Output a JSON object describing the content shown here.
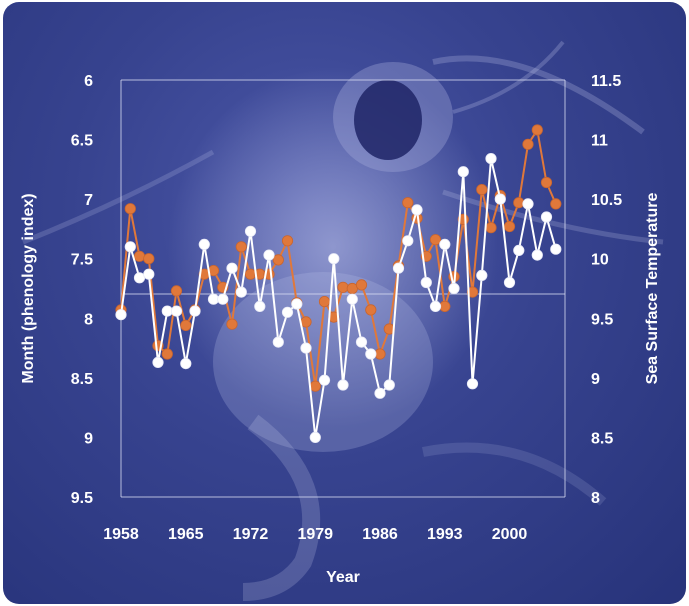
{
  "chart_data": {
    "type": "line",
    "title": "",
    "xlabel": "Year",
    "ylabel": "Month (phenology index)",
    "y2label": "Sea Surface Temperature",
    "xlim": [
      1958,
      2006
    ],
    "ylim": [
      6,
      9.5
    ],
    "ylim_reversed": true,
    "y2lim": [
      8,
      11.5
    ],
    "x_ticks": [
      "1958",
      "1965",
      "1972",
      "1979",
      "1986",
      "1993",
      "2000"
    ],
    "x_tick_values": [
      1958,
      1965,
      1972,
      1979,
      1986,
      1993,
      2000
    ],
    "y_ticks": [
      "6",
      "6.5",
      "7",
      "7.5",
      "8",
      "8.5",
      "9",
      "9.5"
    ],
    "y_tick_values": [
      6,
      6.5,
      7,
      7.5,
      8,
      8.5,
      9,
      9.5
    ],
    "y2_ticks": [
      "11.5",
      "11",
      "10.5",
      "10",
      "9.5",
      "9",
      "8.5",
      "8"
    ],
    "y2_tick_values": [
      11.5,
      11,
      10.5,
      10,
      9.5,
      9,
      8.5,
      8
    ],
    "grid": false,
    "legend": "none",
    "x": [
      1958,
      1959,
      1960,
      1961,
      1962,
      1963,
      1964,
      1965,
      1966,
      1967,
      1968,
      1969,
      1970,
      1971,
      1972,
      1973,
      1974,
      1975,
      1976,
      1977,
      1978,
      1979,
      1980,
      1981,
      1982,
      1983,
      1984,
      1985,
      1986,
      1987,
      1988,
      1989,
      1990,
      1991,
      1992,
      1993,
      1994,
      1995,
      1996,
      1997,
      1998,
      1999,
      2000,
      2001,
      2002,
      2003,
      2004,
      2005
    ],
    "series": [
      {
        "axis": "left",
        "color": "#ffffff",
        "values": [
          7.97,
          7.4,
          7.66,
          7.63,
          8.37,
          7.94,
          7.94,
          8.38,
          7.94,
          7.38,
          7.84,
          7.84,
          7.58,
          7.78,
          7.27,
          7.9,
          7.47,
          8.2,
          7.95,
          7.88,
          8.25,
          9.0,
          8.52,
          7.5,
          8.56,
          7.84,
          8.2,
          8.3,
          8.63,
          8.56,
          7.58,
          7.35,
          7.09,
          7.7,
          7.9,
          7.38,
          7.75,
          6.77,
          8.55,
          7.64,
          6.66,
          7.0,
          7.7,
          7.43,
          7.04,
          7.47,
          7.15,
          7.42
        ]
      },
      {
        "axis": "right",
        "color": "#e0783a",
        "values": [
          9.57,
          10.42,
          10.02,
          10.0,
          9.27,
          9.2,
          9.73,
          9.44,
          9.57,
          9.87,
          9.9,
          9.76,
          9.45,
          10.1,
          9.87,
          9.87,
          9.87,
          9.99,
          10.15,
          9.63,
          9.47,
          8.93,
          9.64,
          9.51,
          9.76,
          9.75,
          9.78,
          9.57,
          9.2,
          9.41,
          9.94,
          10.47,
          10.34,
          10.02,
          10.16,
          9.6,
          9.85,
          10.33,
          9.72,
          10.58,
          10.26,
          10.53,
          10.27,
          10.47,
          10.96,
          11.08,
          10.64,
          10.46
        ]
      }
    ]
  }
}
